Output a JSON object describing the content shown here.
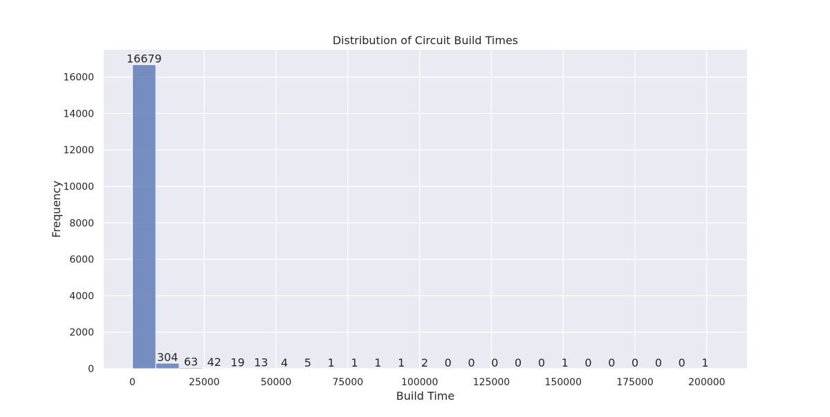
{
  "chart_data": {
    "type": "bar",
    "title": "Distribution of Circuit Build Times",
    "xlabel": "Build Time",
    "ylabel": "Frequency",
    "xlim": [
      -10000,
      214000
    ],
    "ylim": [
      0,
      17500
    ],
    "xticks": [
      0,
      25000,
      50000,
      75000,
      100000,
      125000,
      150000,
      175000,
      200000
    ],
    "yticks": [
      0,
      2000,
      4000,
      6000,
      8000,
      10000,
      12000,
      14000,
      16000
    ],
    "grid": true,
    "bin_start": 0,
    "bin_width": 8140,
    "bins": [
      [
        0,
        8140
      ],
      [
        8140,
        16280
      ],
      [
        16280,
        24420
      ],
      [
        24420,
        32560
      ],
      [
        32560,
        40700
      ],
      [
        40700,
        48840
      ],
      [
        48840,
        56980
      ],
      [
        56980,
        65120
      ],
      [
        65120,
        73260
      ],
      [
        73260,
        81400
      ],
      [
        81400,
        89540
      ],
      [
        89540,
        97680
      ],
      [
        97680,
        105820
      ],
      [
        105820,
        113960
      ],
      [
        113960,
        122100
      ],
      [
        122100,
        130240
      ],
      [
        130240,
        138380
      ],
      [
        138380,
        146520
      ],
      [
        146520,
        154660
      ],
      [
        154660,
        162800
      ],
      [
        162800,
        170940
      ],
      [
        170940,
        179080
      ],
      [
        179080,
        187220
      ],
      [
        187220,
        195360
      ],
      [
        195360,
        203500
      ]
    ],
    "values": [
      16679,
      304,
      63,
      42,
      19,
      13,
      4,
      5,
      1,
      1,
      1,
      1,
      2,
      0,
      0,
      0,
      0,
      0,
      1,
      0,
      0,
      0,
      0,
      0,
      1
    ],
    "colors": {
      "bar": "#5975b5",
      "bar_edge": "#ffffff",
      "plot_background": "#eaeaf2",
      "grid": "#ffffff",
      "text": "#262626"
    }
  }
}
